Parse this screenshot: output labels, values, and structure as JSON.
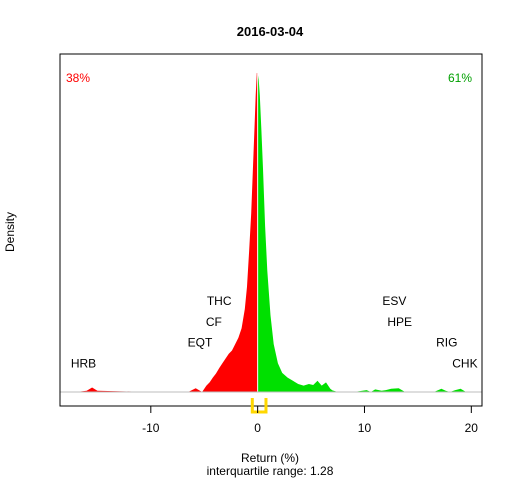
{
  "chart_data": {
    "type": "area",
    "title": "2016-03-04",
    "xlabel": "Return (%)",
    "subtitle": "interquartile range: 1.28",
    "ylabel": "Density",
    "xlim": [
      -18.5,
      21
    ],
    "x_ticks": [
      -10,
      0,
      10,
      20
    ],
    "ylim": [
      0,
      1
    ],
    "left_share": "38%",
    "right_share": "61%",
    "colors": {
      "negative": "#ff0000",
      "positive": "#00e000",
      "iqr_marker": "#ffd700",
      "baseline": "#bebebe"
    },
    "iqr": [
      -0.5,
      0.78
    ],
    "density": {
      "x": [
        -17,
        -16,
        -15.5,
        -15,
        -10,
        -6.5,
        -5.8,
        -5.2,
        -4.8,
        -4.5,
        -4.2,
        -3.9,
        -3.6,
        -3.3,
        -3.0,
        -2.7,
        -2.4,
        -2.1,
        -1.8,
        -1.5,
        -1.2,
        -1.0,
        -0.8,
        -0.6,
        -0.45,
        -0.3,
        -0.18,
        -0.08,
        0,
        0.1,
        0.2,
        0.35,
        0.5,
        0.7,
        0.9,
        1.2,
        1.5,
        1.9,
        2.3,
        2.8,
        3.3,
        3.8,
        4.3,
        4.8,
        5.2,
        5.6,
        6.0,
        6.4,
        6.8,
        7.0,
        7.5,
        9,
        10.2,
        10.6,
        11,
        11.6,
        12,
        12.5,
        13.2,
        13.8,
        14.5,
        16.5,
        17.2,
        17.6,
        18,
        18.5,
        19,
        19.5,
        20
      ],
      "y": [
        0,
        0.004,
        0.014,
        0.004,
        0,
        0,
        0.012,
        0.0,
        0.02,
        0.03,
        0.045,
        0.058,
        0.075,
        0.09,
        0.105,
        0.12,
        0.13,
        0.15,
        0.17,
        0.2,
        0.26,
        0.33,
        0.44,
        0.56,
        0.69,
        0.82,
        0.93,
        1.0,
        1.0,
        0.98,
        0.93,
        0.82,
        0.7,
        0.52,
        0.38,
        0.24,
        0.15,
        0.09,
        0.06,
        0.045,
        0.035,
        0.025,
        0.02,
        0.025,
        0.022,
        0.035,
        0.02,
        0.03,
        0.01,
        0.005,
        0,
        0,
        0.006,
        0.0,
        0.008,
        0.004,
        0.006,
        0.01,
        0.012,
        0.0,
        0,
        0,
        0.01,
        0.004,
        0,
        0.006,
        0.01,
        0,
        0
      ]
    },
    "annotations": [
      {
        "label": "HRB",
        "x": -16.3,
        "y": 0.065
      },
      {
        "label": "EQT",
        "x": -5.4,
        "y": 0.13
      },
      {
        "label": "CF",
        "x": -4.1,
        "y": 0.195
      },
      {
        "label": "THC",
        "x": -3.6,
        "y": 0.26
      },
      {
        "label": "ESV",
        "x": 12.8,
        "y": 0.26
      },
      {
        "label": "HPE",
        "x": 13.3,
        "y": 0.195
      },
      {
        "label": "RIG",
        "x": 17.7,
        "y": 0.13
      },
      {
        "label": "CHK",
        "x": 19.4,
        "y": 0.065
      }
    ]
  }
}
